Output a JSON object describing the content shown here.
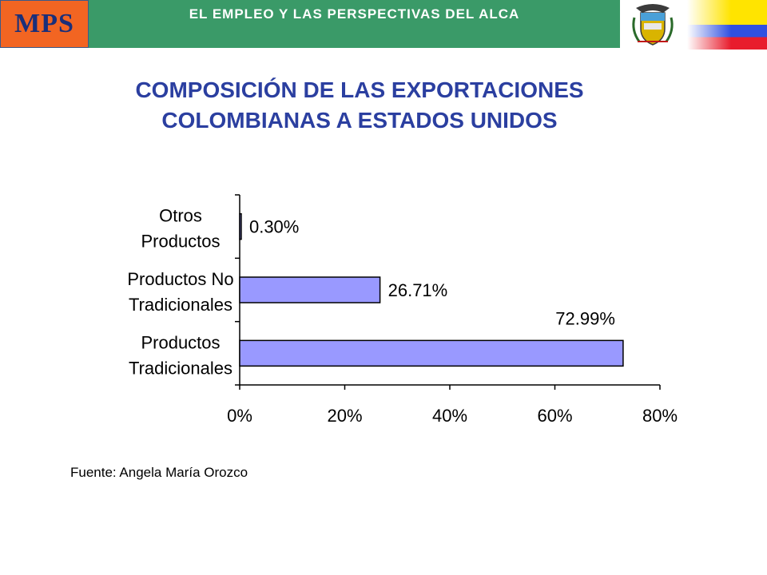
{
  "header": {
    "logo_text": "MPS",
    "title": "EL EMPLEO Y LAS PERSPECTIVAS DEL ALCA"
  },
  "slide": {
    "title_line1": "COMPOSICIÓN DE LAS EXPORTACIONES",
    "title_line2": "COLOMBIANAS A ESTADOS UNIDOS",
    "source": "Fuente: Angela María Orozco"
  },
  "colors": {
    "bar_fill": "#9999ff",
    "title_color": "#2b3fa0",
    "header_green": "#3a9a68",
    "logo_orange": "#f26522"
  },
  "chart_data": {
    "type": "bar",
    "orientation": "horizontal",
    "categories": [
      [
        "Otros",
        "Productos"
      ],
      [
        "Productos No",
        "Tradicionales"
      ],
      [
        "Productos",
        "Tradicionales"
      ]
    ],
    "values": [
      0.3,
      26.71,
      72.99
    ],
    "data_labels": [
      "0.30%",
      "26.71%",
      "72.99%"
    ],
    "xlim": [
      0,
      80
    ],
    "xticks": [
      "0%",
      "20%",
      "40%",
      "60%",
      "80%"
    ],
    "grid": false,
    "legend": "none"
  }
}
